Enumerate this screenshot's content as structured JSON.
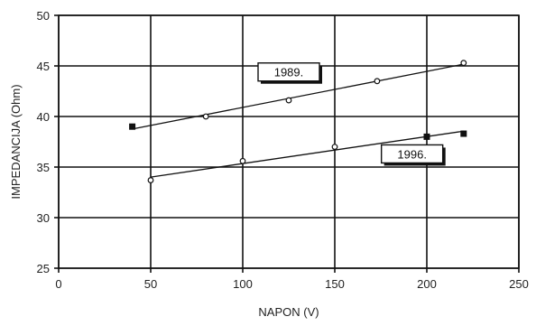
{
  "chart_data": {
    "type": "line",
    "xlabel": "NAPON (V)",
    "ylabel": "IMPEDANCIJA (Ohm)",
    "xlim": [
      0,
      250
    ],
    "ylim": [
      25,
      50
    ],
    "x_ticks": [
      0,
      50,
      100,
      150,
      200,
      250
    ],
    "y_ticks": [
      25,
      30,
      35,
      40,
      45,
      50
    ],
    "grid": true,
    "legend": "none",
    "series": [
      {
        "name": "1989.",
        "points": [
          {
            "x": 40,
            "y": 39.0,
            "marker": "filled"
          },
          {
            "x": 80,
            "y": 40.0,
            "marker": "open"
          },
          {
            "x": 125,
            "y": 41.6,
            "marker": "open"
          },
          {
            "x": 173,
            "y": 43.5,
            "marker": "open"
          },
          {
            "x": 220,
            "y": 45.3,
            "marker": "open"
          }
        ],
        "annotation_at": {
          "x": 125,
          "y": 44.4
        }
      },
      {
        "name": "1996.",
        "points": [
          {
            "x": 50,
            "y": 33.7,
            "marker": "open"
          },
          {
            "x": 100,
            "y": 35.6,
            "marker": "open"
          },
          {
            "x": 150,
            "y": 37.0,
            "marker": "open"
          },
          {
            "x": 200,
            "y": 38.0,
            "marker": "filled"
          },
          {
            "x": 220,
            "y": 38.3,
            "marker": "filled"
          }
        ],
        "annotation_at": {
          "x": 192,
          "y": 36.3
        }
      }
    ]
  }
}
